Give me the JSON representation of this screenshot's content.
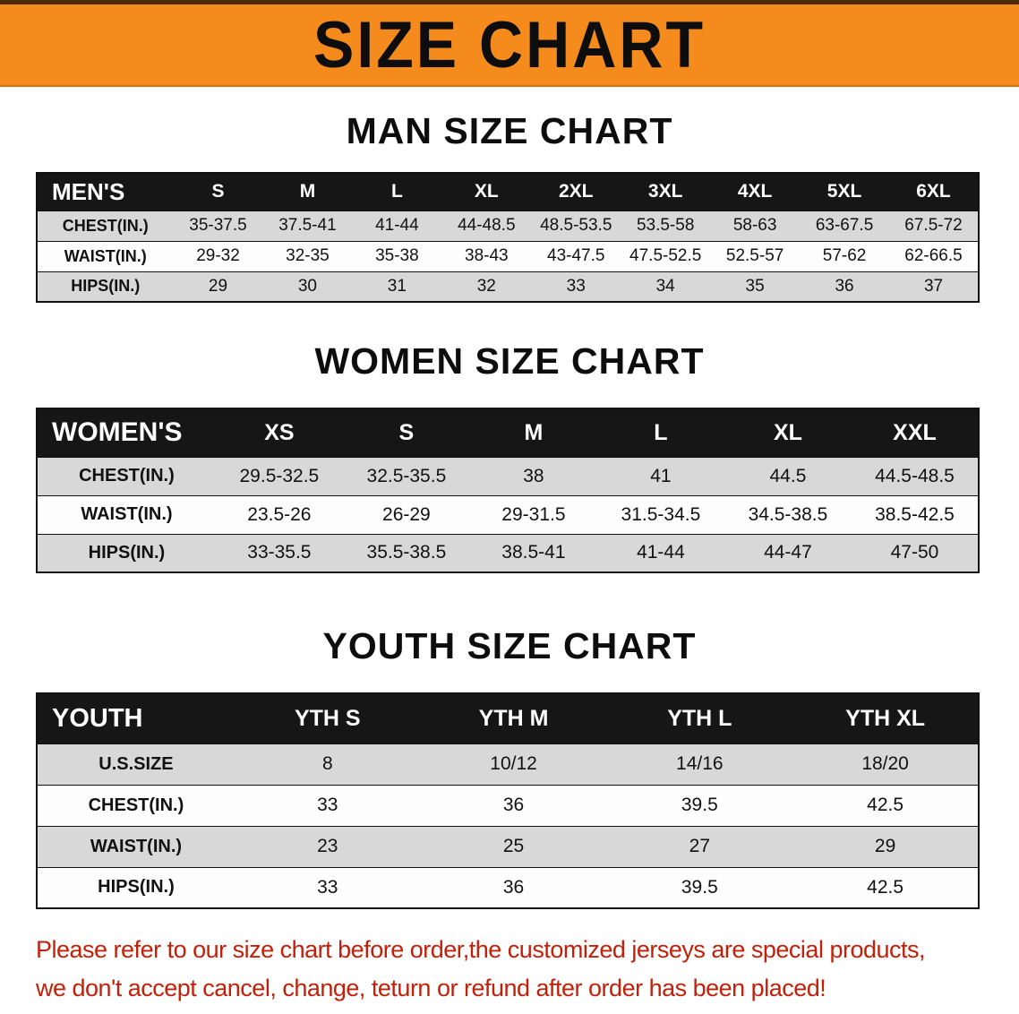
{
  "banner": {
    "title": "SIZE CHART"
  },
  "colors": {
    "banner_bg": "#f58a1d",
    "header_bg": "#161616",
    "row_alt": "#d8d8d8",
    "line": "#111111",
    "disclaimer_red": "#c3200a"
  },
  "sections": {
    "men": {
      "heading": "MAN SIZE CHART",
      "table": {
        "header": [
          "MEN'S",
          "S",
          "M",
          "L",
          "XL",
          "2XL",
          "3XL",
          "4XL",
          "5XL",
          "6XL"
        ],
        "rows": [
          [
            "CHEST(IN.)",
            "35-37.5",
            "37.5-41",
            "41-44",
            "44-48.5",
            "48.5-53.5",
            "53.5-58",
            "58-63",
            "63-67.5",
            "67.5-72"
          ],
          [
            "WAIST(IN.)",
            "29-32",
            "32-35",
            "35-38",
            "38-43",
            "43-47.5",
            "47.5-52.5",
            "52.5-57",
            "57-62",
            "62-66.5"
          ],
          [
            "HIPS(IN.)",
            "29",
            "30",
            "31",
            "32",
            "33",
            "34",
            "35",
            "36",
            "37"
          ]
        ]
      }
    },
    "women": {
      "heading": "WOMEN SIZE CHART",
      "table": {
        "header": [
          "WOMEN'S",
          "XS",
          "S",
          "M",
          "L",
          "XL",
          "XXL"
        ],
        "rows": [
          [
            "CHEST(IN.)",
            "29.5-32.5",
            "32.5-35.5",
            "38",
            "41",
            "44.5",
            "44.5-48.5"
          ],
          [
            "WAIST(IN.)",
            "23.5-26",
            "26-29",
            "29-31.5",
            "31.5-34.5",
            "34.5-38.5",
            "38.5-42.5"
          ],
          [
            "HIPS(IN.)",
            "33-35.5",
            "35.5-38.5",
            "38.5-41",
            "41-44",
            "44-47",
            "47-50"
          ]
        ]
      }
    },
    "youth": {
      "heading": "YOUTH SIZE CHART",
      "table": {
        "header": [
          "YOUTH",
          "YTH S",
          "YTH M",
          "YTH L",
          "YTH XL"
        ],
        "rows": [
          [
            "U.S.SIZE",
            "8",
            "10/12",
            "14/16",
            "18/20"
          ],
          [
            "CHEST(IN.)",
            "33",
            "36",
            "39.5",
            "42.5"
          ],
          [
            "WAIST(IN.)",
            "23",
            "25",
            "27",
            "29"
          ],
          [
            "HIPS(IN.)",
            "33",
            "36",
            "39.5",
            "42.5"
          ]
        ]
      }
    }
  },
  "disclaimer": {
    "line1": "Please refer to our size chart before order,the customized jerseys are special products,",
    "line2": "we don't accept cancel, change, teturn or refund after order has been placed!"
  }
}
